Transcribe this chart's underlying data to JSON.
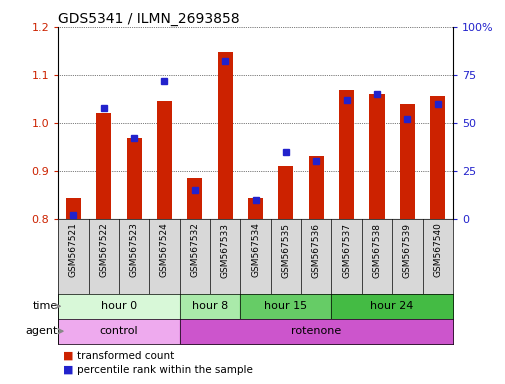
{
  "title": "GDS5341 / ILMN_2693858",
  "samples": [
    "GSM567521",
    "GSM567522",
    "GSM567523",
    "GSM567524",
    "GSM567532",
    "GSM567533",
    "GSM567534",
    "GSM567535",
    "GSM567536",
    "GSM567537",
    "GSM567538",
    "GSM567539",
    "GSM567540"
  ],
  "transformed_count": [
    0.843,
    1.02,
    0.968,
    1.045,
    0.885,
    1.148,
    0.843,
    0.91,
    0.932,
    1.068,
    1.06,
    1.04,
    1.055
  ],
  "percentile_rank": [
    2,
    58,
    42,
    72,
    15,
    82,
    10,
    35,
    30,
    62,
    65,
    52,
    60
  ],
  "ylim_left": [
    0.8,
    1.2
  ],
  "ylim_right": [
    0,
    100
  ],
  "yticks_left": [
    0.8,
    0.9,
    1.0,
    1.1,
    1.2
  ],
  "yticks_right": [
    0,
    25,
    50,
    75,
    100
  ],
  "ytick_right_labels": [
    "0",
    "25",
    "50",
    "75",
    "100%"
  ],
  "bar_color": "#cc2200",
  "dot_color": "#2222cc",
  "baseline": 0.8,
  "time_groups": [
    {
      "label": "hour 0",
      "start": 0,
      "end": 4,
      "color": "#d8f8d8"
    },
    {
      "label": "hour 8",
      "start": 4,
      "end": 6,
      "color": "#aaeaaa"
    },
    {
      "label": "hour 15",
      "start": 6,
      "end": 9,
      "color": "#66cc66"
    },
    {
      "label": "hour 24",
      "start": 9,
      "end": 13,
      "color": "#44bb44"
    }
  ],
  "agent_groups": [
    {
      "label": "control",
      "start": 0,
      "end": 4,
      "color": "#eeaaee"
    },
    {
      "label": "rotenone",
      "start": 4,
      "end": 13,
      "color": "#cc55cc"
    }
  ],
  "legend_red_label": "transformed count",
  "legend_blue_label": "percentile rank within the sample",
  "bar_color_leg": "#cc2200",
  "dot_color_leg": "#2222cc",
  "left_axis_color": "#cc2200",
  "right_axis_color": "#2222cc"
}
